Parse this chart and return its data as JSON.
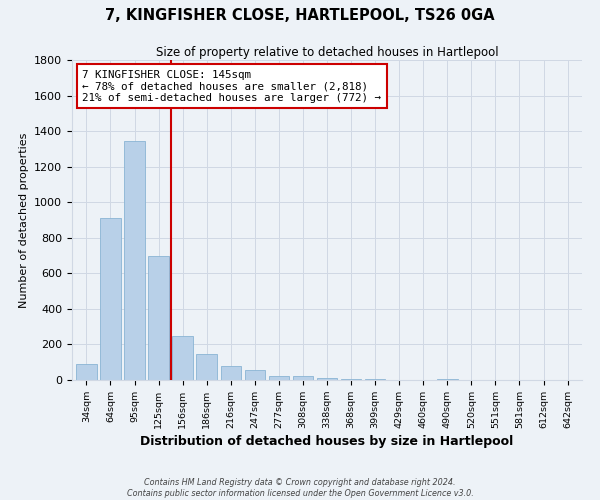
{
  "title": "7, KINGFISHER CLOSE, HARTLEPOOL, TS26 0GA",
  "subtitle": "Size of property relative to detached houses in Hartlepool",
  "xlabel": "Distribution of detached houses by size in Hartlepool",
  "ylabel": "Number of detached properties",
  "bar_labels": [
    "34sqm",
    "64sqm",
    "95sqm",
    "125sqm",
    "156sqm",
    "186sqm",
    "216sqm",
    "247sqm",
    "277sqm",
    "308sqm",
    "338sqm",
    "368sqm",
    "399sqm",
    "429sqm",
    "460sqm",
    "490sqm",
    "520sqm",
    "551sqm",
    "581sqm",
    "612sqm",
    "642sqm"
  ],
  "bar_values": [
    90,
    910,
    1345,
    700,
    250,
    145,
    80,
    55,
    25,
    20,
    10,
    5,
    3,
    2,
    0,
    8,
    0,
    0,
    0,
    0,
    0
  ],
  "bar_color": "#b8d0e8",
  "bar_edge_color": "#8ab4d4",
  "vline_color": "#cc0000",
  "annotation_title": "7 KINGFISHER CLOSE: 145sqm",
  "annotation_line1": "← 78% of detached houses are smaller (2,818)",
  "annotation_line2": "21% of semi-detached houses are larger (772) →",
  "annotation_box_color": "#ffffff",
  "annotation_box_edge": "#cc0000",
  "ylim": [
    0,
    1800
  ],
  "yticks": [
    0,
    200,
    400,
    600,
    800,
    1000,
    1200,
    1400,
    1600,
    1800
  ],
  "footer1": "Contains HM Land Registry data © Crown copyright and database right 2024.",
  "footer2": "Contains public sector information licensed under the Open Government Licence v3.0.",
  "bg_color": "#edf2f7",
  "plot_bg_color": "#edf2f7",
  "grid_color": "#d0d8e4"
}
